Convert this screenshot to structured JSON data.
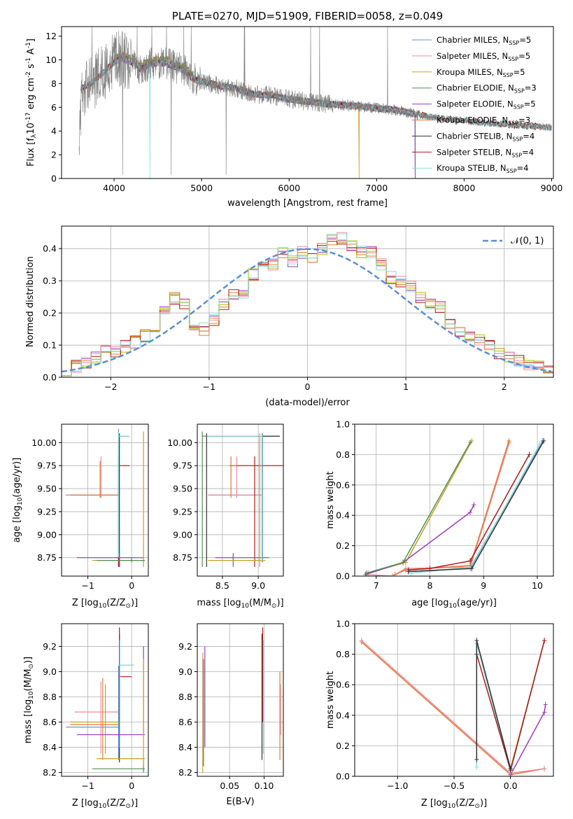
{
  "colors": [
    "#6a8fd8",
    "#f08aa0",
    "#c9a020",
    "#4f8f55",
    "#9b3bbf",
    "#e07c35",
    "#333333",
    "#b01818",
    "#86dcdc"
  ],
  "colors_hist": [
    "#9b3bbf",
    "#cde06a",
    "#e07c35",
    "#b01818",
    "#f08aa0",
    "#86dcdc"
  ],
  "chart_data": [
    {
      "id": "spectrum",
      "type": "line",
      "title": "PLATE=0270, MJD=51909, FIBERID=0058, z=0.049",
      "xlabel": "wavelength [Angstrom, rest frame]",
      "ylabel_main": "Flux [f",
      "ylabel_sub": "λ",
      "ylabel_rest": "10",
      "ylabel_exp": "-17",
      "ylabel_units": " erg cm",
      "ylabel_exp2": "-2",
      "ylabel_s": " s",
      "ylabel_exp3": "-1",
      "ylabel_A": " A",
      "ylabel_exp4": "-1",
      "ylabel_end": "]",
      "xlim": [
        3400,
        9020
      ],
      "ylim": [
        0,
        12.8
      ],
      "xticks": [
        "4000",
        "5000",
        "6000",
        "7000",
        "8000",
        "9000"
      ],
      "yticks": [
        "0",
        "2",
        "4",
        "6",
        "8",
        "10",
        "12"
      ],
      "legend": [
        {
          "name": "Chabrier MILES, N",
          "sub": "SSP",
          "val": "=5"
        },
        {
          "name": "Salpeter MILES, N",
          "sub": "SSP",
          "val": "=5"
        },
        {
          "name": "Kroupa MILES, N",
          "sub": "SSP",
          "val": "=5"
        },
        {
          "name": "Chabrier ELODIE, N",
          "sub": "SSP",
          "val": "=3"
        },
        {
          "name": "Salpeter ELODIE, N",
          "sub": "SSP",
          "val": "=5"
        },
        {
          "name": "Kroupa ELODIE, N",
          "sub": "SSP",
          "val": "=3"
        },
        {
          "name": "Chabrier STELIB, N",
          "sub": "SSP",
          "val": "=4"
        },
        {
          "name": "Salpeter STELIB, N",
          "sub": "SSP",
          "val": "=4"
        },
        {
          "name": "Kroupa STELIB, N",
          "sub": "SSP",
          "val": "=4"
        }
      ],
      "continuum_x": [
        3620,
        3700,
        3800,
        3900,
        4000,
        4100,
        4200,
        4300,
        4400,
        4500,
        4600,
        4700,
        4800,
        4900,
        5000,
        5200,
        5400,
        5600,
        5800,
        6000,
        6200,
        6400,
        6600,
        6800,
        7000,
        7200,
        7400,
        7600,
        7800,
        8000,
        8200,
        8400,
        8600,
        8800,
        9000
      ],
      "continuum_y": [
        7.6,
        7.8,
        8.4,
        9.1,
        9.8,
        10.1,
        9.8,
        9.2,
        9.6,
        9.7,
        9.7,
        9.4,
        9.1,
        8.4,
        8.2,
        7.8,
        7.6,
        7.1,
        7.0,
        6.7,
        6.5,
        6.3,
        6.2,
        6.1,
        5.9,
        5.8,
        5.5,
        5.2,
        5.0,
        4.9,
        4.7,
        4.6,
        4.5,
        4.4,
        4.3
      ]
    },
    {
      "id": "residuals",
      "type": "bar",
      "xlabel": "(data-model)/error",
      "ylabel": "Normed distribution",
      "xlim": [
        -2.5,
        2.5
      ],
      "ylim": [
        0,
        0.47
      ],
      "xticks": [
        "−2",
        "−1",
        "0",
        "1",
        "2"
      ],
      "yticks": [
        "0.0",
        "0.1",
        "0.2",
        "0.3",
        "0.4"
      ],
      "legend_label": "𝒩(0, 1)",
      "bin_width": 0.1,
      "histogram": [
        0.025,
        0.035,
        0.045,
        0.06,
        0.08,
        0.075,
        0.095,
        0.11,
        0.13,
        0.16,
        0.2,
        0.245,
        0.23,
        0.15,
        0.15,
        0.175,
        0.225,
        0.26,
        0.25,
        0.32,
        0.36,
        0.35,
        0.385,
        0.36,
        0.39,
        0.37,
        0.4,
        0.43,
        0.43,
        0.41,
        0.39,
        0.39,
        0.35,
        0.31,
        0.3,
        0.28,
        0.25,
        0.23,
        0.22,
        0.17,
        0.14,
        0.13,
        0.12,
        0.1,
        0.075,
        0.06,
        0.05,
        0.035,
        0.03,
        0.025
      ]
    },
    {
      "id": "age-vs-Z",
      "type": "scatter",
      "xlabel": "Z [log",
      "xlabel_sub": "10",
      "xlabel_rest": "(Z/Z",
      "xlabel_sun": "⊙",
      "xlabel_end": ")]",
      "ylabel": "age  [log",
      "ylabel_sub": "10",
      "ylabel_rest": "(age/yr)]",
      "xlim": [
        -1.6,
        0.38
      ],
      "ylim": [
        8.55,
        10.2
      ],
      "xticks": [
        "−1",
        "0"
      ],
      "xtick_vals": [
        -1,
        0
      ],
      "yticks": [
        "8.75",
        "9.00",
        "9.25",
        "9.50",
        "9.75",
        "10.00"
      ],
      "ytick_vals": [
        8.75,
        9.0,
        9.25,
        9.5,
        9.75,
        10.0
      ]
    },
    {
      "id": "age-vs-mass",
      "type": "scatter",
      "xlabel": "mass [log",
      "xlabel_sub": "10",
      "xlabel_rest": "(M/M",
      "xlabel_sun": "⊙",
      "xlabel_end": ")]",
      "xlim": [
        8.15,
        9.35
      ],
      "ylim": [
        8.55,
        10.2
      ],
      "xticks": [
        "8.5",
        "9.0"
      ],
      "xtick_vals": [
        8.5,
        9.0
      ],
      "yticks": [
        "8.75",
        "9.00",
        "9.25",
        "9.50",
        "9.75",
        "10.00"
      ],
      "ytick_vals": [
        8.75,
        9.0,
        9.25,
        9.5,
        9.75,
        10.0
      ]
    },
    {
      "id": "weight-vs-age",
      "type": "line",
      "xlabel": "age  [log",
      "xlabel_sub": "10",
      "xlabel_rest": "(age/yr)]",
      "ylabel": "mass weight",
      "xlim": [
        6.6,
        10.3
      ],
      "ylim": [
        0,
        1.0
      ],
      "xticks": [
        "7",
        "8",
        "9",
        "10"
      ],
      "xtick_vals": [
        7,
        8,
        9,
        10
      ],
      "yticks": [
        "0.0",
        "0.2",
        "0.4",
        "0.6",
        "0.8",
        "1.0"
      ],
      "ytick_vals": [
        0,
        0.2,
        0.4,
        0.6,
        0.8,
        1.0
      ]
    },
    {
      "id": "mass-vs-Z",
      "type": "scatter",
      "xlabel": "Z [log",
      "xlabel_sub": "10",
      "xlabel_rest": "(Z/Z",
      "xlabel_sun": "⊙",
      "xlabel_end": ")]",
      "ylabel": "mass [log",
      "ylabel_sub": "10",
      "ylabel_rest": "(M/M",
      "ylabel_sun": "⊙",
      "ylabel_end": ")]",
      "xlim": [
        -1.6,
        0.38
      ],
      "ylim": [
        8.17,
        9.38
      ],
      "xticks": [
        "−1",
        "0"
      ],
      "xtick_vals": [
        -1,
        0
      ],
      "yticks": [
        "8.2",
        "8.4",
        "8.6",
        "8.8",
        "9.0",
        "9.2"
      ],
      "ytick_vals": [
        8.2,
        8.4,
        8.6,
        8.8,
        9.0,
        9.2
      ]
    },
    {
      "id": "mass-vs-ebv",
      "type": "scatter",
      "xlabel": "E(B-V)",
      "xlim": [
        0.003,
        0.128
      ],
      "ylim": [
        8.17,
        9.38
      ],
      "xticks": [
        "0.05",
        "0.10"
      ],
      "xtick_vals": [
        0.05,
        0.1
      ],
      "yticks": [
        "8.2",
        "8.4",
        "8.6",
        "8.8",
        "9.0",
        "9.2"
      ],
      "ytick_vals": [
        8.2,
        8.4,
        8.6,
        8.8,
        9.0,
        9.2
      ]
    },
    {
      "id": "weight-vs-Z",
      "type": "line",
      "xlabel": "Z [log",
      "xlabel_sub": "10",
      "xlabel_rest": "(Z/Z",
      "xlabel_sun": "⊙",
      "xlabel_end": ")]",
      "ylabel": "mass weight",
      "xlim": [
        -1.38,
        0.38
      ],
      "ylim": [
        0,
        1.0
      ],
      "xticks": [
        "−1.0",
        "−0.5",
        "0.0"
      ],
      "xtick_vals": [
        -1.0,
        -0.5,
        0.0
      ],
      "yticks": [
        "0.0",
        "0.2",
        "0.4",
        "0.6",
        "0.8",
        "1.0"
      ],
      "ytick_vals": [
        0,
        0.2,
        0.4,
        0.6,
        0.8,
        1.0
      ]
    }
  ],
  "weight_lines_age": [
    {
      "ci": 1,
      "pts": [
        [
          6.82,
          0.01
        ],
        [
          7.3,
          0.0
        ],
        [
          7.55,
          0.05
        ],
        [
          8.75,
          0.06
        ],
        [
          9.48,
          0.88
        ]
      ]
    },
    {
      "ci": 5,
      "pts": [
        [
          7.35,
          0.01
        ],
        [
          7.55,
          0.04
        ],
        [
          8.75,
          0.07
        ],
        [
          9.47,
          0.89
        ]
      ]
    },
    {
      "ci": 2,
      "pts": [
        [
          6.85,
          0.02
        ],
        [
          7.55,
          0.09
        ],
        [
          8.78,
          0.89
        ]
      ]
    },
    {
      "ci": 0,
      "pts": [
        [
          7.6,
          0.03
        ],
        [
          8.75,
          0.05
        ],
        [
          10.1,
          0.89
        ]
      ]
    },
    {
      "ci": 8,
      "pts": [
        [
          7.65,
          0.02
        ],
        [
          8.78,
          0.06
        ],
        [
          10.05,
          0.87
        ]
      ]
    },
    {
      "ci": 7,
      "pts": [
        [
          7.6,
          0.04
        ],
        [
          8.0,
          0.05
        ],
        [
          8.75,
          0.1
        ],
        [
          9.85,
          0.8
        ]
      ]
    },
    {
      "ci": 4,
      "pts": [
        [
          6.8,
          0.01
        ],
        [
          7.5,
          0.09
        ],
        [
          8.75,
          0.42
        ],
        [
          8.82,
          0.47
        ]
      ]
    },
    {
      "ci": 3,
      "pts": [
        [
          6.82,
          0.02
        ],
        [
          7.5,
          0.09
        ],
        [
          8.75,
          0.88
        ]
      ]
    },
    {
      "ci": 6,
      "pts": [
        [
          7.6,
          0.03
        ],
        [
          8.78,
          0.05
        ],
        [
          10.12,
          0.89
        ]
      ]
    }
  ],
  "weight_lines_Z": [
    {
      "ci": 5,
      "pts": [
        [
          -1.32,
          0.88
        ],
        [
          0.0,
          0.01
        ],
        [
          0.3,
          0.05
        ]
      ]
    },
    {
      "ci": 1,
      "pts": [
        [
          -1.32,
          0.89
        ],
        [
          0.0,
          0.02
        ],
        [
          0.3,
          0.05
        ]
      ]
    },
    {
      "ci": 2,
      "pts": [
        [
          0.0,
          0.05
        ],
        [
          0.3,
          0.89
        ]
      ]
    },
    {
      "ci": 4,
      "pts": [
        [
          0.0,
          0.01
        ],
        [
          0.3,
          0.42
        ],
        [
          0.31,
          0.47
        ]
      ]
    },
    {
      "ci": 8,
      "pts": [
        [
          -0.3,
          0.06
        ],
        [
          -0.3,
          0.87
        ],
        [
          0.0,
          0.03
        ],
        [
          0.3,
          0.89
        ]
      ]
    },
    {
      "ci": 7,
      "pts": [
        [
          -0.3,
          0.8
        ],
        [
          0.0,
          0.04
        ],
        [
          0.3,
          0.89
        ]
      ]
    },
    {
      "ci": 6,
      "pts": [
        [
          -0.3,
          0.11
        ],
        [
          -0.3,
          0.89
        ],
        [
          0.0,
          0.05
        ]
      ]
    }
  ]
}
